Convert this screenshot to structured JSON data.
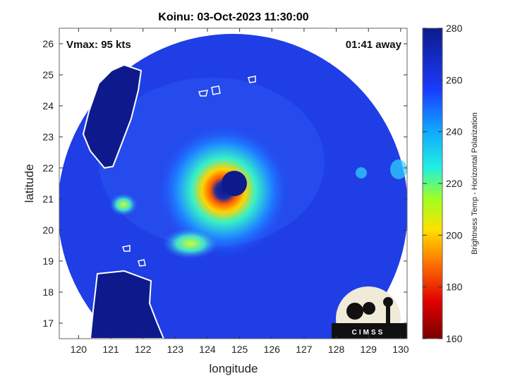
{
  "title": "Koinu: 03-Oct-2023 11:30:00",
  "overlay": {
    "vmax": "Vmax: 95 kts",
    "time_away": "01:41 away"
  },
  "axes": {
    "xlabel": "longitude",
    "ylabel": "latitude",
    "xticks": [
      "120",
      "121",
      "122",
      "123",
      "124",
      "125",
      "126",
      "127",
      "128",
      "129",
      "130"
    ],
    "yticks": [
      "17",
      "18",
      "19",
      "20",
      "21",
      "22",
      "23",
      "24",
      "25",
      "26"
    ]
  },
  "colorbar": {
    "label": "Brightness Temp - Horizontal Polarization",
    "ticks": [
      "160",
      "180",
      "200",
      "220",
      "240",
      "260",
      "280"
    ],
    "colors": [
      "#7a0000",
      "#ff0000",
      "#ff9900",
      "#ffff00",
      "#7fff00",
      "#00ffd0",
      "#00aaff",
      "#1a3cff",
      "#0e1a8c"
    ]
  },
  "logo": {
    "text": "CIMSS"
  },
  "map_data": {
    "lon_range": [
      119.4,
      130.2
    ],
    "lat_range": [
      16.5,
      26.5
    ],
    "swath_center": [
      124.8,
      20.9
    ],
    "storm_eye": [
      124.7,
      21.45
    ],
    "storm_name": "Koinu"
  }
}
